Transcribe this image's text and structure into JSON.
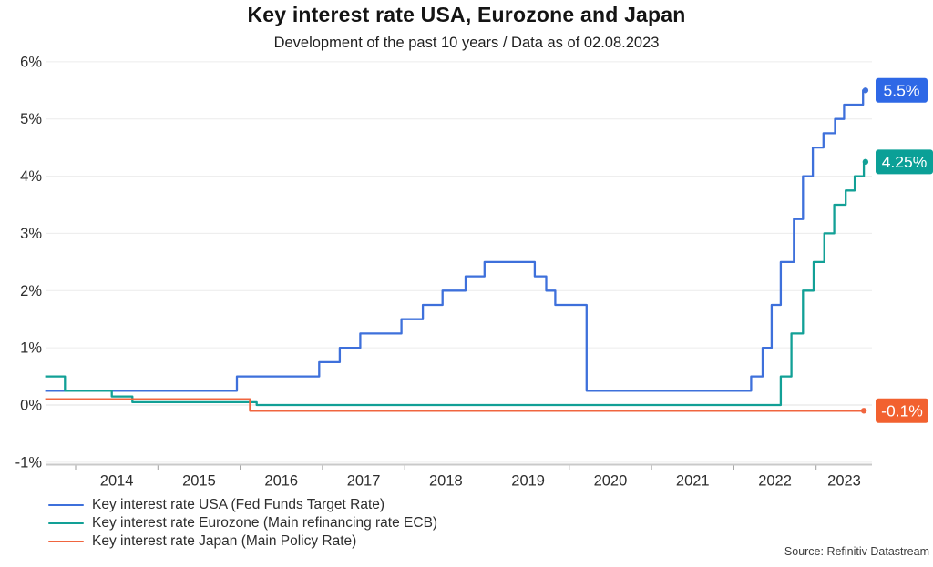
{
  "header": {
    "title": "Key interest rate USA, Eurozone and Japan",
    "subtitle": "Development of the past 10 years / Data as of 02.08.2023"
  },
  "source_note": "Source: Refinitiv Datastream",
  "chart_data": {
    "type": "line",
    "title": "Key interest rate USA, Eurozone and Japan",
    "subtitle": "Development of the past 10 years / Data as of 02.08.2023",
    "interpolation": "step-after",
    "legend_position": "bottom-left",
    "x_axis": {
      "unit": "year",
      "ticks": [
        2014,
        2015,
        2016,
        2017,
        2018,
        2019,
        2020,
        2021,
        2022,
        2023
      ],
      "range": [
        2013.63,
        2023.68
      ],
      "grid": false
    },
    "y_axis": {
      "labels": [
        "6%",
        "5%",
        "4%",
        "3%",
        "2%",
        "1%",
        "0%",
        "-1%"
      ],
      "values": [
        6,
        5,
        4,
        3,
        2,
        1,
        0,
        -1
      ],
      "range": [
        -1,
        6
      ],
      "unit": "%",
      "grid": true
    },
    "series": [
      {
        "name": "Key interest rate USA (Fed Funds Target Rate)",
        "color": "#3E70DB",
        "end_label": "5.5%",
        "end_value": 5.5,
        "badge_color": "#2E68E6",
        "badge_width": 57,
        "end_x": 2023.6,
        "points": [
          [
            2013.63,
            0.25
          ],
          [
            2015.96,
            0.5
          ],
          [
            2016.96,
            0.75
          ],
          [
            2017.21,
            1.0
          ],
          [
            2017.46,
            1.25
          ],
          [
            2017.96,
            1.5
          ],
          [
            2018.22,
            1.75
          ],
          [
            2018.46,
            2.0
          ],
          [
            2018.74,
            2.25
          ],
          [
            2018.97,
            2.5
          ],
          [
            2019.58,
            2.25
          ],
          [
            2019.72,
            2.0
          ],
          [
            2019.83,
            1.75
          ],
          [
            2020.21,
            0.25
          ],
          [
            2022.21,
            0.5
          ],
          [
            2022.35,
            1.0
          ],
          [
            2022.46,
            1.75
          ],
          [
            2022.57,
            2.5
          ],
          [
            2022.73,
            3.25
          ],
          [
            2022.84,
            4.0
          ],
          [
            2022.96,
            4.5
          ],
          [
            2023.09,
            4.75
          ],
          [
            2023.23,
            5.0
          ],
          [
            2023.34,
            5.25
          ],
          [
            2023.57,
            5.5
          ]
        ]
      },
      {
        "name": "Key interest rate Eurozone (Main refinancing rate ECB)",
        "color": "#12A096",
        "end_label": "4.25%",
        "end_value": 4.25,
        "badge_color": "#0BA097",
        "badge_width": 63,
        "end_x": 2023.6,
        "points": [
          [
            2013.63,
            0.5
          ],
          [
            2013.87,
            0.25
          ],
          [
            2014.44,
            0.15
          ],
          [
            2014.69,
            0.05
          ],
          [
            2016.2,
            0.0
          ],
          [
            2022.57,
            0.5
          ],
          [
            2022.7,
            1.25
          ],
          [
            2022.84,
            2.0
          ],
          [
            2022.97,
            2.5
          ],
          [
            2023.1,
            3.0
          ],
          [
            2023.22,
            3.5
          ],
          [
            2023.36,
            3.75
          ],
          [
            2023.47,
            4.0
          ],
          [
            2023.58,
            4.25
          ]
        ]
      },
      {
        "name": "Key interest rate Japan (Main Policy Rate)",
        "color": "#F0653F",
        "end_label": "-0.1%",
        "end_value": -0.1,
        "badge_color": "#F2612F",
        "badge_width": 58,
        "end_x": 2023.58,
        "points": [
          [
            2013.63,
            0.1
          ],
          [
            2016.12,
            -0.1
          ]
        ]
      }
    ]
  }
}
